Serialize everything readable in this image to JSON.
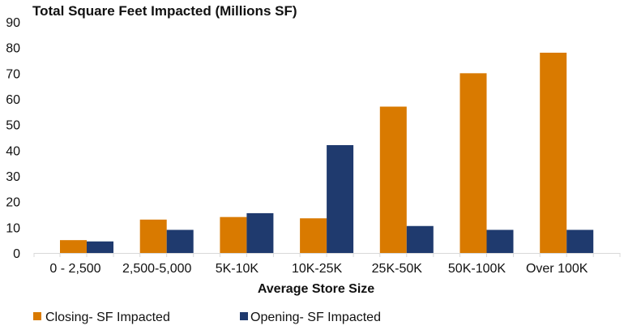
{
  "chart_data": {
    "type": "bar",
    "title": "Total Square Feet Impacted (Millions SF)",
    "xlabel": "Average Store Size",
    "ylabel": "",
    "ylim": [
      0,
      90
    ],
    "yticks": [
      0,
      10,
      20,
      30,
      40,
      50,
      60,
      70,
      80,
      90
    ],
    "grid": false,
    "legend_position": "bottom-left",
    "categories": [
      "0 - 2,500",
      "2,500-5,000",
      "5K-10K",
      "10K-25K",
      "25K-50K",
      "50K-100K",
      "Over 100K"
    ],
    "series": [
      {
        "name": "Closing- SF Impacted",
        "color": "#D97A00",
        "values": [
          5,
          13,
          14,
          13.5,
          57,
          70,
          78
        ]
      },
      {
        "name": "Opening- SF Impacted",
        "color": "#1F3A6E",
        "values": [
          4.5,
          9,
          15.5,
          42,
          10.5,
          9,
          9
        ]
      }
    ]
  }
}
